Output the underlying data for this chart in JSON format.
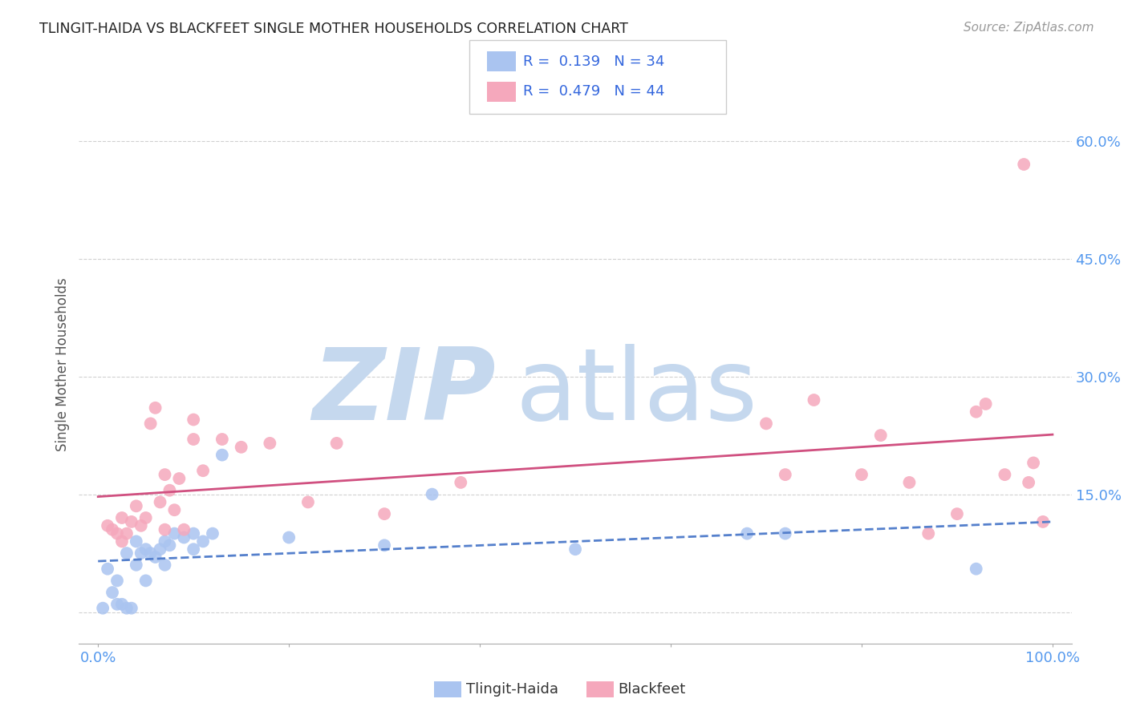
{
  "title": "TLINGIT-HAIDA VS BLACKFEET SINGLE MOTHER HOUSEHOLDS CORRELATION CHART",
  "source": "Source: ZipAtlas.com",
  "ylabel": "Single Mother Households",
  "xlim": [
    -0.02,
    1.02
  ],
  "ylim": [
    -0.04,
    0.67
  ],
  "yticks": [
    0.0,
    0.15,
    0.3,
    0.45,
    0.6
  ],
  "ytick_labels": [
    "",
    "15.0%",
    "30.0%",
    "45.0%",
    "60.0%"
  ],
  "xticks": [
    0.0,
    0.2,
    0.4,
    0.6,
    0.8,
    1.0
  ],
  "xtick_labels": [
    "0.0%",
    "",
    "",
    "",
    "",
    "100.0%"
  ],
  "tlingit_color": "#aac4f0",
  "blackfeet_color": "#f5a8bc",
  "tlingit_line_color": "#5580cc",
  "blackfeet_line_color": "#d05080",
  "tick_color": "#5599ee",
  "background_color": "#ffffff",
  "grid_color": "#cccccc",
  "watermark_zip_color": "#c5d8ee",
  "watermark_atlas_color": "#c5d8ee",
  "tlingit_x": [
    0.005,
    0.01,
    0.015,
    0.02,
    0.02,
    0.025,
    0.03,
    0.03,
    0.035,
    0.04,
    0.04,
    0.045,
    0.05,
    0.05,
    0.055,
    0.06,
    0.065,
    0.07,
    0.07,
    0.075,
    0.08,
    0.09,
    0.1,
    0.1,
    0.11,
    0.12,
    0.13,
    0.2,
    0.3,
    0.35,
    0.5,
    0.68,
    0.72,
    0.92
  ],
  "tlingit_y": [
    0.005,
    0.055,
    0.025,
    0.04,
    0.01,
    0.01,
    0.075,
    0.005,
    0.005,
    0.06,
    0.09,
    0.075,
    0.04,
    0.08,
    0.075,
    0.07,
    0.08,
    0.06,
    0.09,
    0.085,
    0.1,
    0.095,
    0.08,
    0.1,
    0.09,
    0.1,
    0.2,
    0.095,
    0.085,
    0.15,
    0.08,
    0.1,
    0.1,
    0.055
  ],
  "blackfeet_x": [
    0.01,
    0.015,
    0.02,
    0.025,
    0.025,
    0.03,
    0.035,
    0.04,
    0.045,
    0.05,
    0.055,
    0.06,
    0.065,
    0.07,
    0.07,
    0.075,
    0.08,
    0.085,
    0.09,
    0.1,
    0.1,
    0.11,
    0.13,
    0.15,
    0.18,
    0.22,
    0.25,
    0.3,
    0.38,
    0.7,
    0.72,
    0.75,
    0.8,
    0.82,
    0.85,
    0.87,
    0.9,
    0.92,
    0.93,
    0.95,
    0.97,
    0.975,
    0.98,
    0.99
  ],
  "blackfeet_y": [
    0.11,
    0.105,
    0.1,
    0.09,
    0.12,
    0.1,
    0.115,
    0.135,
    0.11,
    0.12,
    0.24,
    0.26,
    0.14,
    0.175,
    0.105,
    0.155,
    0.13,
    0.17,
    0.105,
    0.22,
    0.245,
    0.18,
    0.22,
    0.21,
    0.215,
    0.14,
    0.215,
    0.125,
    0.165,
    0.24,
    0.175,
    0.27,
    0.175,
    0.225,
    0.165,
    0.1,
    0.125,
    0.255,
    0.265,
    0.175,
    0.57,
    0.165,
    0.19,
    0.115
  ]
}
